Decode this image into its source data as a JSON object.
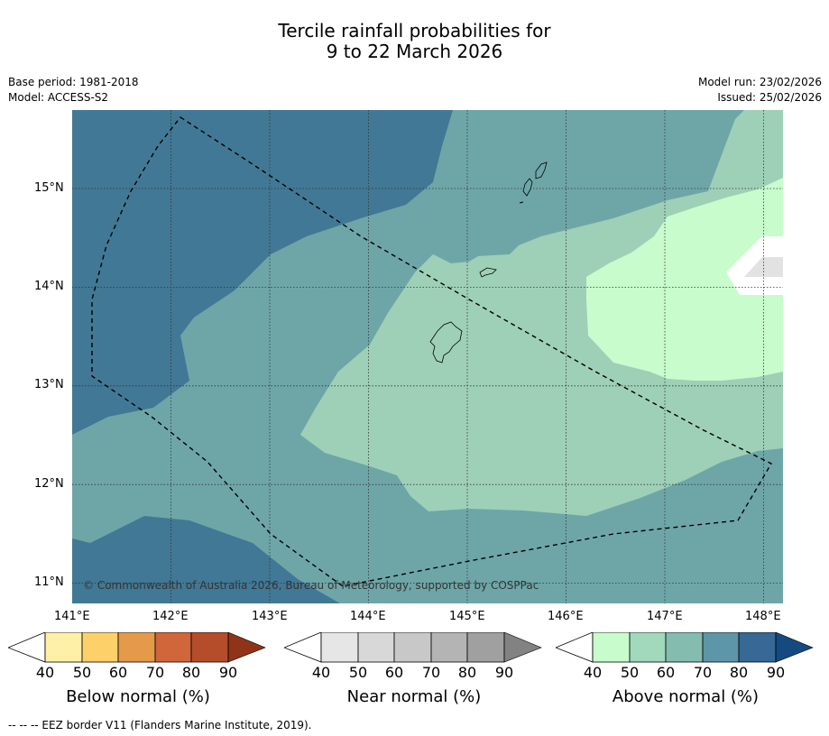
{
  "title": {
    "line1": "Tercile rainfall probabilities for",
    "line2": "9 to 22 March 2026"
  },
  "meta": {
    "base_period": "Base period: 1981-2018",
    "model": "Model: ACCESS-S2",
    "model_run": "Model run: 23/02/2026",
    "issued": "Issued: 25/02/2026"
  },
  "map": {
    "lat_labels": [
      "15°N",
      "14°N",
      "13°N",
      "12°N",
      "11°N"
    ],
    "lon_labels": [
      "141°E",
      "142°E",
      "143°E",
      "144°E",
      "145°E",
      "146°E",
      "147°E",
      "148°E"
    ],
    "extent": {
      "lon": [
        140.9,
        148.1
      ],
      "lat": [
        10.8,
        15.8
      ]
    },
    "copyright": "© Commonwealth of Australia 2026, Bureau of Meteorology, supported by COSPPac"
  },
  "colorbars": [
    {
      "label": "Below normal (%)",
      "ticks": [
        "40",
        "50",
        "60",
        "70",
        "80",
        "90"
      ],
      "colors": [
        "#fff0a8",
        "#fdd06a",
        "#e59a4a",
        "#d0663a",
        "#b54d2a",
        "#8f3418"
      ]
    },
    {
      "label": "Near normal (%)",
      "ticks": [
        "40",
        "50",
        "60",
        "70",
        "80",
        "90"
      ],
      "colors": [
        "#e6e6e6",
        "#d8d8d8",
        "#c8c8c8",
        "#b4b4b4",
        "#a0a0a0",
        "#828282"
      ]
    },
    {
      "label": "Above normal (%)",
      "ticks": [
        "40",
        "50",
        "60",
        "70",
        "80",
        "90"
      ],
      "colors": [
        "#c8fccc",
        "#a2d8bc",
        "#84bcb0",
        "#5d96a8",
        "#376896",
        "#154a80"
      ]
    }
  ],
  "footer": {
    "legend_line": "-- -- -- EEZ border V11 (Flanders Marine Institute, 2019)."
  }
}
